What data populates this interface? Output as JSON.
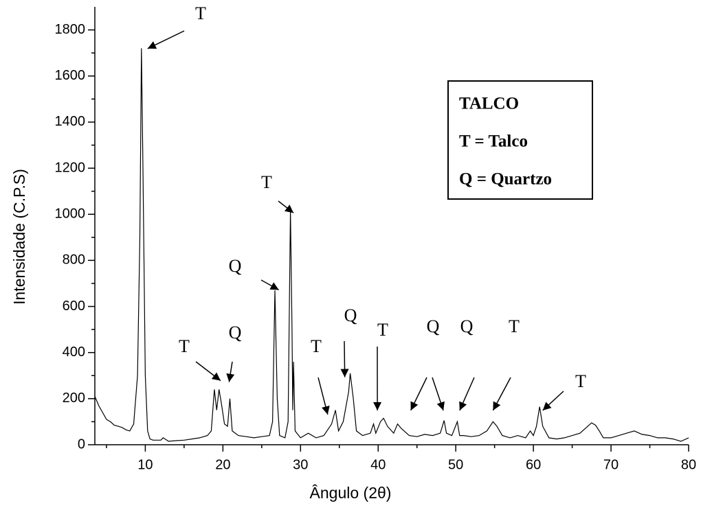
{
  "chart_data": {
    "type": "line",
    "x_label": "Ângulo (2θ)",
    "y_label": "Intensidade (C.P.S)",
    "color": "#000000",
    "x": [
      3.5,
      4,
      4.5,
      5,
      5.5,
      6,
      6.5,
      7,
      7.5,
      8,
      8.5,
      9,
      9.3,
      9.5,
      9.7,
      10,
      10.3,
      10.6,
      11,
      12,
      12.3,
      13,
      14,
      15,
      16,
      17,
      18,
      18.5,
      18.9,
      19.2,
      19.5,
      19.8,
      20.2,
      20.6,
      20.9,
      21.2,
      22,
      23,
      24,
      25,
      26,
      26.4,
      26.7,
      27,
      27.3,
      28,
      28.4,
      28.7,
      28.9,
      29,
      29.1,
      29.3,
      30,
      31,
      32,
      33,
      34,
      34.5,
      34.9,
      35.5,
      36.2,
      36.4,
      36.8,
      37.2,
      38,
      39,
      39.4,
      39.7,
      40.3,
      40.7,
      41.2,
      42,
      42.5,
      43,
      44,
      45,
      46,
      47,
      48,
      48.5,
      48.8,
      49.5,
      50.2,
      50.5,
      51,
      52,
      53,
      54,
      54.8,
      55.3,
      56,
      57,
      58,
      59,
      59.6,
      60,
      60.4,
      60.8,
      61.2,
      62,
      63,
      64,
      65,
      66,
      67,
      67.5,
      68,
      68.5,
      69,
      70,
      71,
      72,
      73,
      74,
      75,
      76,
      77,
      78,
      79,
      80
    ],
    "values": [
      210,
      170,
      140,
      110,
      100,
      85,
      80,
      75,
      65,
      60,
      90,
      300,
      900,
      1720,
      1200,
      300,
      60,
      25,
      20,
      20,
      30,
      15,
      18,
      20,
      25,
      30,
      40,
      60,
      240,
      150,
      240,
      180,
      90,
      80,
      200,
      60,
      40,
      35,
      30,
      35,
      40,
      100,
      670,
      200,
      40,
      30,
      100,
      1020,
      500,
      150,
      360,
      60,
      30,
      50,
      30,
      40,
      90,
      150,
      60,
      100,
      230,
      310,
      200,
      60,
      40,
      50,
      90,
      50,
      100,
      115,
      80,
      50,
      90,
      70,
      40,
      35,
      45,
      40,
      50,
      105,
      50,
      40,
      100,
      40,
      40,
      35,
      40,
      60,
      100,
      80,
      40,
      30,
      40,
      30,
      60,
      40,
      80,
      165,
      80,
      30,
      25,
      30,
      40,
      50,
      80,
      95,
      85,
      60,
      30,
      30,
      40,
      50,
      60,
      45,
      40,
      30,
      30,
      25,
      15,
      30
    ],
    "xlim": [
      3.5,
      80
    ],
    "ylim": [
      0,
      1900
    ],
    "xticks": [
      10,
      20,
      30,
      40,
      50,
      60,
      70,
      80
    ],
    "xminorticks": [
      5,
      15,
      25,
      35,
      45,
      55,
      65,
      75
    ],
    "yticks": [
      0,
      200,
      400,
      600,
      800,
      1000,
      1200,
      1400,
      1600,
      1800
    ],
    "yminorticks": [
      100,
      300,
      500,
      700,
      900,
      1100,
      1300,
      1500,
      1700
    ],
    "annotations": [
      {
        "text": "T",
        "targets": [
          [
            10.3,
            1719
          ]
        ]
      },
      {
        "text": "T",
        "targets": [
          [
            19.7,
            278
          ]
        ]
      },
      {
        "text": "Q",
        "targets": [
          [
            20.8,
            272
          ]
        ]
      },
      {
        "text": "Q",
        "targets": [
          [
            27.2,
            672
          ]
        ]
      },
      {
        "text": "T",
        "targets": [
          [
            29.1,
            1006
          ]
        ]
      },
      {
        "text": "T",
        "targets": [
          [
            33.5,
            131
          ]
        ]
      },
      {
        "text": "Q",
        "targets": [
          [
            35.7,
            293
          ]
        ]
      },
      {
        "text": "T",
        "targets": [
          [
            39.9,
            149
          ]
        ]
      },
      {
        "text": "Q",
        "targets": [
          [
            44.2,
            149
          ],
          [
            48.4,
            149
          ]
        ]
      },
      {
        "text": "Q",
        "targets": [
          [
            50.5,
            149
          ]
        ]
      },
      {
        "text": "T",
        "targets": [
          [
            54.8,
            149
          ]
        ]
      },
      {
        "text": "T",
        "targets": [
          [
            61.2,
            149
          ]
        ]
      }
    ],
    "legend_box": [
      "TALCO",
      "T = Talco",
      "Q = Quartzo"
    ]
  }
}
